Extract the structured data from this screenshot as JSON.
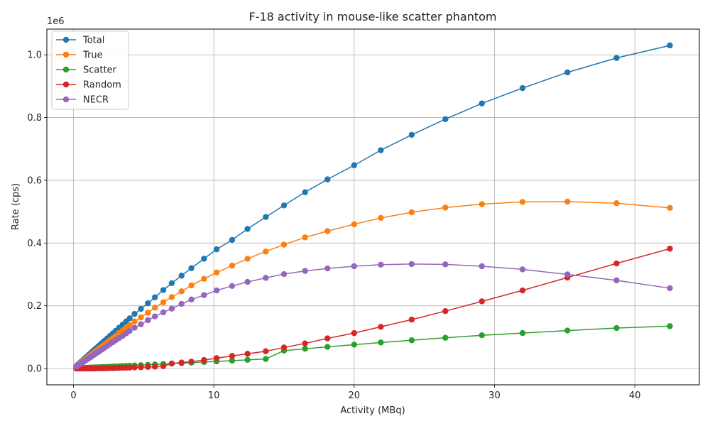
{
  "chart_data": {
    "type": "line",
    "title": "F-18 activity in mouse-like scatter phantom",
    "xlabel": "Activity (MBq)",
    "ylabel": "Rate (cps)",
    "y_offset_label": "1e6",
    "xlim": [
      -1.9,
      44.6
    ],
    "ylim": [
      -52000,
      1082000
    ],
    "x_ticks": [
      0,
      10,
      20,
      30,
      40
    ],
    "x_tick_labels": [
      "0",
      "10",
      "20",
      "30",
      "40"
    ],
    "y_ticks": [
      0,
      200000,
      400000,
      600000,
      800000,
      1000000
    ],
    "y_tick_labels": [
      "0.0",
      "0.2",
      "0.4",
      "0.6",
      "0.8",
      "1.0"
    ],
    "grid": true,
    "legend_position": "top-left",
    "x": [
      0.2,
      0.3,
      0.4,
      0.5,
      0.6,
      0.7,
      0.8,
      0.9,
      1.0,
      1.1,
      1.2,
      1.3,
      1.4,
      1.5,
      1.6,
      1.75,
      1.9,
      2.05,
      2.2,
      2.4,
      2.6,
      2.8,
      3.0,
      3.25,
      3.5,
      3.75,
      4.0,
      4.35,
      4.8,
      5.3,
      5.8,
      6.4,
      7.0,
      7.7,
      8.4,
      9.3,
      10.2,
      11.3,
      12.4,
      13.7,
      15.0,
      16.5,
      18.1,
      20.0,
      21.9,
      24.1,
      26.5,
      29.1,
      32.0,
      35.2,
      38.7,
      42.5
    ],
    "series": [
      {
        "name": "Total",
        "color": "#1f77b4",
        "values": [
          8000,
          12000,
          16000,
          20000,
          24000,
          28000,
          32000,
          36000,
          40000,
          44000,
          48000,
          52000,
          56000,
          60000,
          64000,
          70000,
          76000,
          82000,
          88000,
          96000,
          104000,
          112000,
          120000,
          130000,
          140000,
          150000,
          160000,
          174000,
          190000,
          208000,
          227000,
          250000,
          272000,
          296000,
          320000,
          350000,
          380000,
          410000,
          445000,
          483000,
          520000,
          562000,
          603000,
          648000,
          696000,
          745000,
          795000,
          845000,
          894000,
          944000,
          990000,
          1030000
        ]
      },
      {
        "name": "True",
        "color": "#ff7f0e",
        "values": [
          7000,
          10500,
          14000,
          17500,
          21000,
          24500,
          28000,
          31500,
          35000,
          38500,
          42000,
          45000,
          48500,
          52000,
          55500,
          61000,
          66000,
          71000,
          76000,
          83000,
          90000,
          97000,
          104000,
          113000,
          121000,
          130000,
          138000,
          150000,
          163000,
          178000,
          194000,
          211000,
          228000,
          246000,
          265000,
          286000,
          306000,
          328000,
          350000,
          373000,
          395000,
          418000,
          438000,
          460000,
          480000,
          498000,
          513000,
          524000,
          531000,
          532000,
          527000,
          512000
        ]
      },
      {
        "name": "Scatter",
        "color": "#2ca02c",
        "values": [
          400,
          600,
          800,
          1000,
          1300,
          1500,
          1700,
          2000,
          2200,
          2400,
          2600,
          2900,
          3100,
          3300,
          3500,
          3900,
          4200,
          4500,
          4900,
          5300,
          5800,
          6200,
          6600,
          7200,
          7800,
          8300,
          8900,
          9700,
          10700,
          11800,
          12900,
          14200,
          15600,
          17100,
          18700,
          20700,
          22700,
          25100,
          27600,
          30400,
          57000,
          63000,
          69000,
          76000,
          83000,
          90000,
          98000,
          106000,
          113000,
          121000,
          129000,
          135000
        ]
      },
      {
        "name": "Random",
        "color": "#d62728",
        "values": [
          0,
          0,
          0,
          0,
          0,
          0,
          100,
          100,
          100,
          200,
          200,
          200,
          300,
          300,
          400,
          500,
          600,
          700,
          800,
          900,
          1100,
          1300,
          1500,
          1800,
          2100,
          2400,
          2800,
          3300,
          4100,
          5000,
          6000,
          7400,
          16000,
          19000,
          22000,
          27000,
          33000,
          40000,
          47000,
          55000,
          67000,
          80000,
          96000,
          113000,
          133000,
          156000,
          183000,
          214000,
          249000,
          290000,
          335000,
          382000
        ]
      },
      {
        "name": "NECR",
        "color": "#9467bd",
        "values": [
          6000,
          9000,
          12000,
          15000,
          18000,
          21000,
          24000,
          27000,
          30000,
          33000,
          36000,
          39000,
          42000,
          45000,
          48000,
          52000,
          57000,
          61000,
          66000,
          72000,
          78000,
          84000,
          90000,
          97000,
          104000,
          112000,
          120000,
          130000,
          141000,
          154000,
          166000,
          179000,
          191000,
          206000,
          220000,
          234000,
          249000,
          263000,
          276000,
          289000,
          301000,
          311000,
          319000,
          326000,
          331000,
          333000,
          332000,
          326000,
          316000,
          300000,
          281000,
          256000
        ]
      }
    ]
  }
}
